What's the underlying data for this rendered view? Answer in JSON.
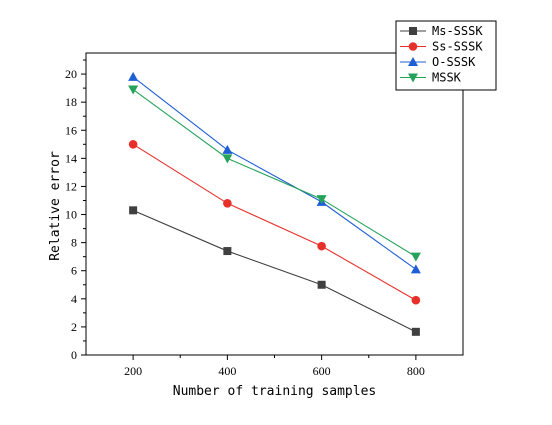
{
  "chart_data": {
    "type": "line",
    "title": "",
    "xlabel": "Number of training samples",
    "ylabel": "Relative error",
    "x": [
      200,
      400,
      600,
      800
    ],
    "xticks": [
      200,
      400,
      600,
      800
    ],
    "yticks": [
      0,
      2,
      4,
      6,
      8,
      10,
      12,
      14,
      16,
      18,
      20
    ],
    "xlim": [
      100,
      900
    ],
    "ylim": [
      0,
      21.5
    ],
    "grid": false,
    "legend_position": "top-right",
    "series": [
      {
        "name": "Ms-SSSK",
        "marker": "square",
        "color": "#404040",
        "values": [
          10.3,
          7.4,
          5.0,
          1.65
        ]
      },
      {
        "name": "Ss-SSSK",
        "marker": "circle",
        "color": "#e8302a",
        "values": [
          15.0,
          10.8,
          7.75,
          3.9
        ]
      },
      {
        "name": "O-SSSK",
        "marker": "triangle-up",
        "color": "#1f5fd6",
        "values": [
          19.8,
          14.6,
          10.9,
          6.1
        ]
      },
      {
        "name": "MSSK",
        "marker": "triangle-down",
        "color": "#25a35a",
        "values": [
          18.9,
          14.0,
          11.1,
          7.0
        ]
      }
    ]
  }
}
